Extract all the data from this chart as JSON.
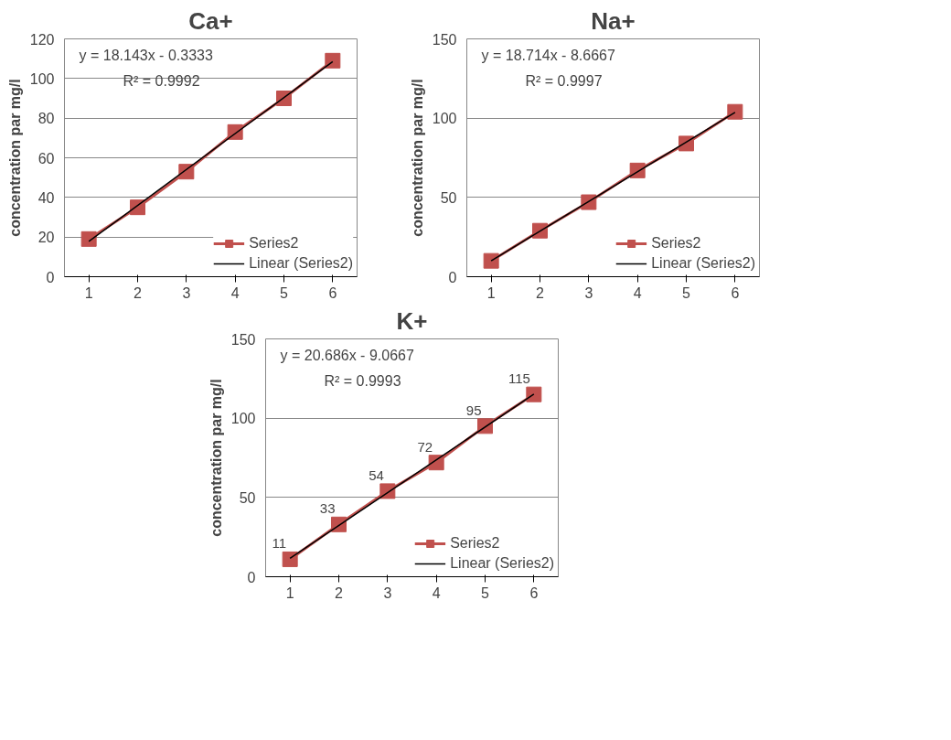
{
  "chart_data": [
    {
      "type": "line",
      "title": "Ca+",
      "ylabel": "concentration par mg/l",
      "xlim": [
        0.5,
        6.5
      ],
      "xticks": [
        1,
        2,
        3,
        4,
        5,
        6
      ],
      "ylim": [
        0,
        120
      ],
      "yticks": [
        0,
        20,
        40,
        60,
        80,
        100,
        120
      ],
      "grid": "y",
      "legend": "bottom right",
      "annotations": [
        "y = 18.143x - 0.3333",
        "R² = 0.9992"
      ],
      "series": [
        {
          "name": "Series2",
          "color": "#c0504d",
          "marker": "square",
          "x": [
            1,
            2,
            3,
            4,
            5,
            6
          ],
          "values": [
            19,
            35,
            53,
            73,
            90,
            109
          ]
        },
        {
          "name": "Linear (Series2)",
          "type": "line",
          "color": "#000000",
          "marker": "none",
          "x": [
            1,
            6
          ],
          "values": [
            17.8,
            108.5
          ]
        }
      ]
    },
    {
      "type": "line",
      "title": "Na+",
      "ylabel": "concentration par mg/l",
      "xlim": [
        0.5,
        6.5
      ],
      "xticks": [
        1,
        2,
        3,
        4,
        5,
        6
      ],
      "ylim": [
        0,
        150
      ],
      "yticks": [
        0,
        50,
        100,
        150
      ],
      "grid": "y",
      "legend": "bottom right",
      "annotations": [
        "y = 18.714x - 8.6667",
        "R² = 0.9997"
      ],
      "series": [
        {
          "name": "Series2",
          "color": "#c0504d",
          "marker": "square",
          "x": [
            1,
            2,
            3,
            4,
            5,
            6
          ],
          "values": [
            10,
            29,
            47,
            67,
            84,
            104
          ]
        },
        {
          "name": "Linear (Series2)",
          "type": "line",
          "color": "#000000",
          "marker": "none",
          "x": [
            1,
            6
          ],
          "values": [
            10,
            103.6
          ]
        }
      ]
    },
    {
      "type": "line",
      "title": "K+",
      "ylabel": "concentration par mg/l",
      "xlim": [
        0.5,
        6.5
      ],
      "xticks": [
        1,
        2,
        3,
        4,
        5,
        6
      ],
      "ylim": [
        0,
        150
      ],
      "yticks": [
        0,
        50,
        100,
        150
      ],
      "grid": "y",
      "legend": "bottom right",
      "annotations": [
        "y = 20.686x - 9.0667",
        "R² = 0.9993"
      ],
      "series": [
        {
          "name": "Series2",
          "color": "#c0504d",
          "marker": "square",
          "x": [
            1,
            2,
            3,
            4,
            5,
            6
          ],
          "values": [
            11,
            33,
            54,
            72,
            95,
            115
          ],
          "value_labels": [
            "11",
            "33",
            "54",
            "72",
            "95",
            "115"
          ]
        },
        {
          "name": "Linear (Series2)",
          "type": "line",
          "color": "#000000",
          "marker": "none",
          "x": [
            1,
            6
          ],
          "values": [
            11.6,
            115.1
          ]
        }
      ]
    }
  ]
}
